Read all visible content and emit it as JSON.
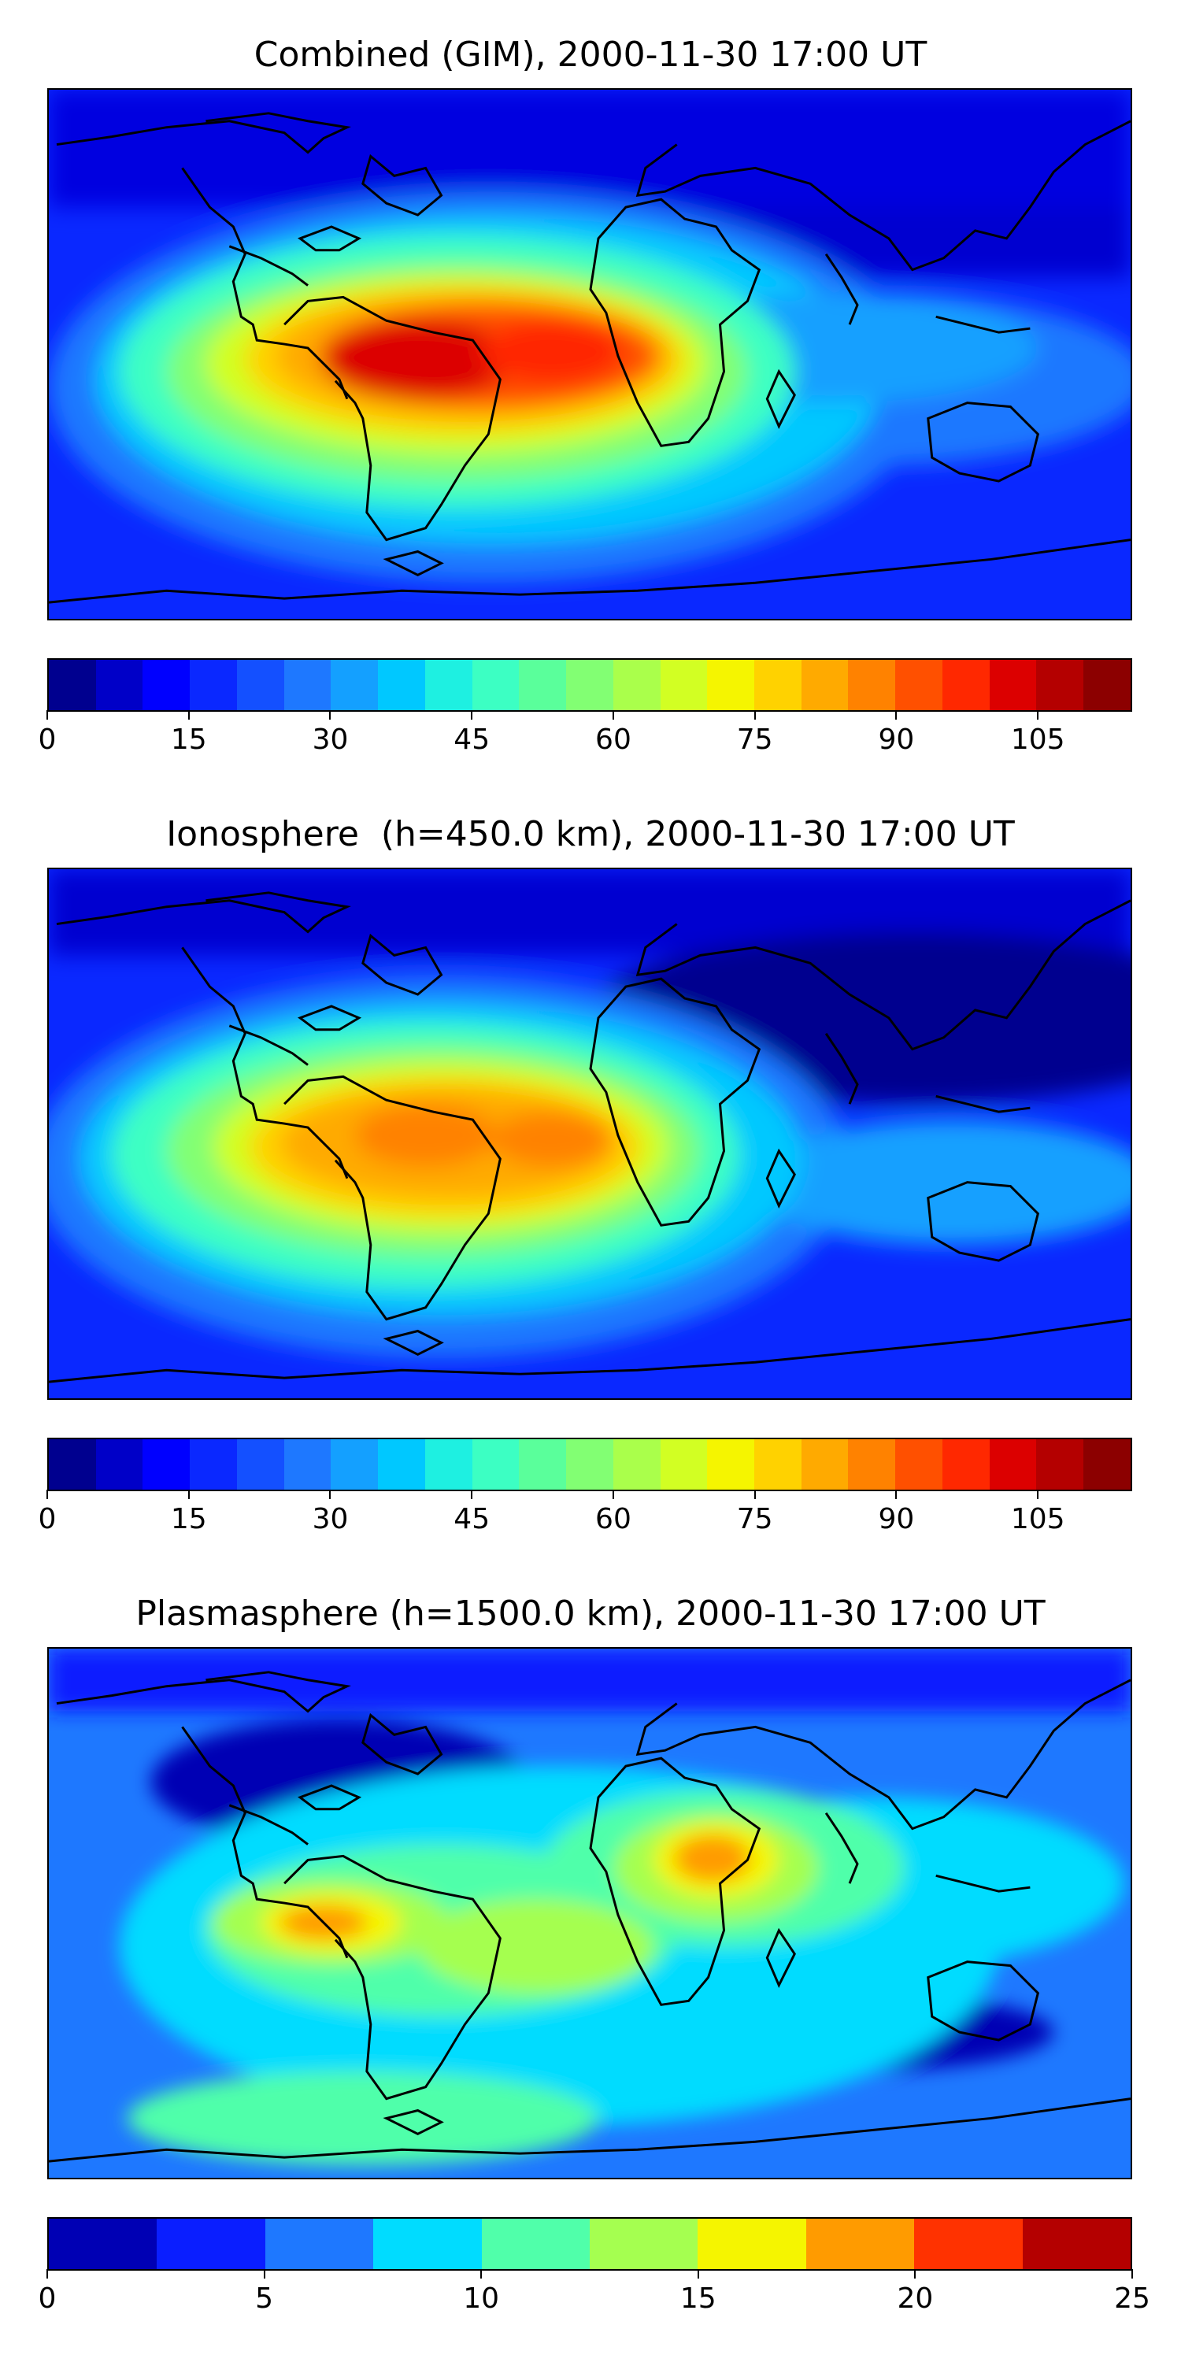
{
  "panels": [
    {
      "title": "Combined (GIM), 2000-11-30 17:00 UT",
      "colorbar": {
        "min": 0,
        "max": 115,
        "step": 5,
        "ticks": [
          "0",
          "15",
          "30",
          "45",
          "60",
          "75",
          "90",
          "105"
        ],
        "tick_values": [
          0,
          15,
          30,
          45,
          60,
          75,
          90,
          105
        ],
        "colors": [
          "#00008f",
          "#0000c8",
          "#0000ff",
          "#0a28ff",
          "#1450ff",
          "#1e78ff",
          "#14a0ff",
          "#00c8ff",
          "#1ef0e1",
          "#3cffc3",
          "#5aff9b",
          "#82ff73",
          "#aaff4b",
          "#d2ff23",
          "#f5f500",
          "#ffd200",
          "#ffaa00",
          "#ff8200",
          "#ff5000",
          "#ff2800",
          "#dc0000",
          "#b40000",
          "#8c0000"
        ]
      }
    },
    {
      "title": "Ionosphere  (h=450.0 km), 2000-11-30 17:00 UT",
      "colorbar": {
        "min": 0,
        "max": 115,
        "step": 5,
        "ticks": [
          "0",
          "15",
          "30",
          "45",
          "60",
          "75",
          "90",
          "105"
        ],
        "tick_values": [
          0,
          15,
          30,
          45,
          60,
          75,
          90,
          105
        ],
        "colors": [
          "#00008f",
          "#0000c8",
          "#0000ff",
          "#0a28ff",
          "#1450ff",
          "#1e78ff",
          "#14a0ff",
          "#00c8ff",
          "#1ef0e1",
          "#3cffc3",
          "#5aff9b",
          "#82ff73",
          "#aaff4b",
          "#d2ff23",
          "#f5f500",
          "#ffd200",
          "#ffaa00",
          "#ff8200",
          "#ff5000",
          "#ff2800",
          "#dc0000",
          "#b40000",
          "#8c0000"
        ]
      }
    },
    {
      "title": "Plasmasphere (h=1500.0 km), 2000-11-30 17:00 UT",
      "colorbar": {
        "min": 0,
        "max": 25,
        "step": 2.5,
        "ticks": [
          "0",
          "5",
          "10",
          "15",
          "20",
          "25"
        ],
        "tick_values": [
          0,
          5,
          10,
          15,
          20,
          25
        ],
        "colors": [
          "#0000b4",
          "#0a1eff",
          "#1e78ff",
          "#00dcff",
          "#50ffaa",
          "#a5ff50",
          "#f5f500",
          "#ff9b00",
          "#ff3200",
          "#b40000"
        ]
      }
    }
  ]
}
